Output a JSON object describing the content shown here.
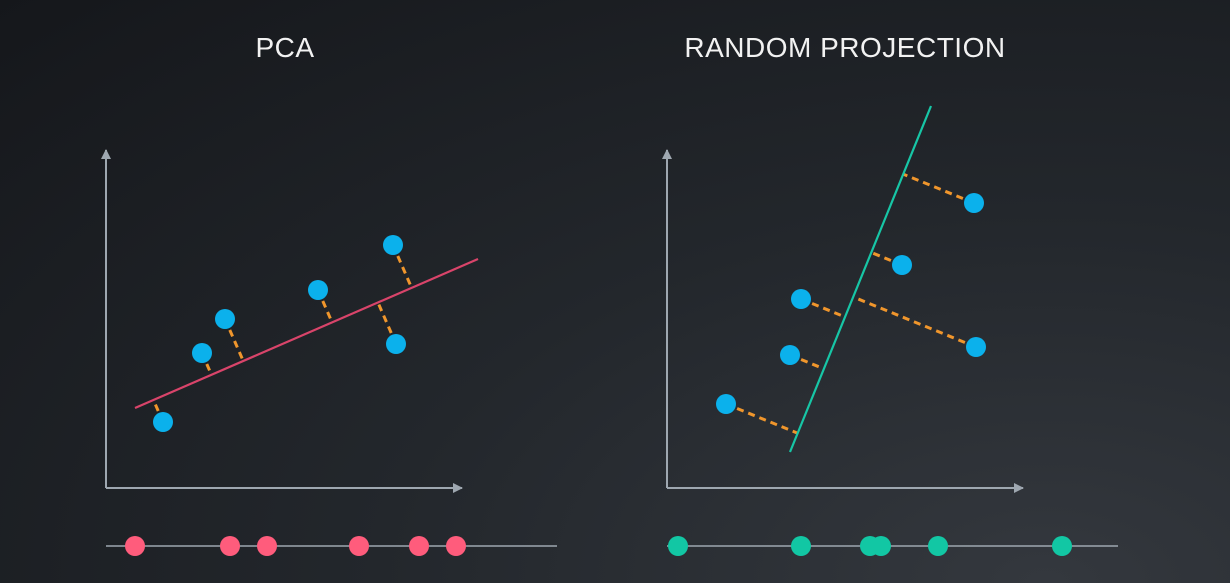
{
  "panels": {
    "pca": {
      "title": "PCA",
      "line_color": "#d9446a",
      "projected_color": "#ff5c7c",
      "points": [
        [
          163,
          422
        ],
        [
          202,
          353
        ],
        [
          225,
          319
        ],
        [
          318,
          290
        ],
        [
          393,
          245
        ],
        [
          396,
          344
        ]
      ],
      "line": [
        [
          135,
          408
        ],
        [
          478,
          259
        ]
      ],
      "projections_1d": [
        135,
        230,
        267,
        359,
        419,
        456
      ]
    },
    "random_projection": {
      "title": "RANDOM PROJECTION",
      "line_color": "#17c6a6",
      "projected_color": "#12c7a4",
      "points": [
        [
          726,
          404
        ],
        [
          790,
          355
        ],
        [
          801,
          299
        ],
        [
          902,
          265
        ],
        [
          974,
          203
        ],
        [
          976,
          347
        ]
      ],
      "line": [
        [
          790,
          452
        ],
        [
          931,
          106
        ]
      ],
      "projections_1d": [
        678,
        801,
        870,
        881,
        938,
        1062
      ]
    }
  },
  "colors": {
    "axis": "#9ea7b0",
    "point": "#0bb1ec",
    "dash": "#f0962c",
    "title": "#f2f2f2"
  }
}
